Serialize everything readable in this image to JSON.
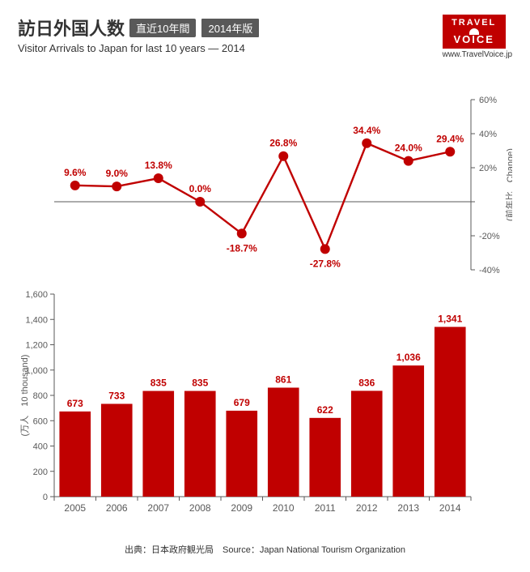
{
  "header": {
    "main_title": "訪日外国人数",
    "pill1": "直近10年間",
    "pill2": "2014年版",
    "subtitle": "Visitor Arrivals to Japan for last 10 years — 2014",
    "logo_top": "TRAVEL",
    "logo_bottom": "VOICE",
    "logo_url": "www.TravelVoice.jp"
  },
  "line_chart": {
    "type": "line",
    "ylabel": "(前年比　Change)",
    "label_fontsize": 11,
    "ylim": [
      -40,
      60
    ],
    "ytick_step": 20,
    "yticks": [
      -40,
      -20,
      0,
      20,
      40,
      60
    ],
    "ytick_labels": [
      "-40%",
      "-20%",
      "",
      "20%",
      "40%",
      "60%"
    ],
    "categories": [
      "2005",
      "2006",
      "2007",
      "2008",
      "2009",
      "2010",
      "2011",
      "2012",
      "2013",
      "2014"
    ],
    "values": [
      9.6,
      9.0,
      13.8,
      0.0,
      -18.7,
      26.8,
      -27.8,
      34.4,
      24.0,
      29.4
    ],
    "value_labels": [
      "9.6%",
      "9.0%",
      "13.8%",
      "0.0%",
      "-18.7%",
      "26.8%",
      "-27.8%",
      "34.4%",
      "24.0%",
      "29.4%"
    ],
    "label_positions": [
      "above",
      "above",
      "above",
      "above",
      "below",
      "above",
      "below",
      "above",
      "above",
      "above"
    ],
    "line_color": "#c00000",
    "marker_color": "#c00000",
    "marker_size": 6,
    "line_width": 2.4,
    "axis_color": "#595959",
    "tick_color": "#595959",
    "text_color": "#c00000",
    "value_fontsize": 12
  },
  "bar_chart": {
    "type": "bar",
    "ylabel": "(万人　10 thousand)",
    "label_fontsize": 11,
    "ylim": [
      0,
      1600
    ],
    "ytick_step": 200,
    "yticks": [
      0,
      200,
      400,
      600,
      800,
      1000,
      1200,
      1400,
      1600
    ],
    "ytick_labels": [
      "0",
      "200",
      "400",
      "600",
      "800",
      "1,000",
      "1,200",
      "1,400",
      "1,600"
    ],
    "categories": [
      "2005",
      "2006",
      "2007",
      "2008",
      "2009",
      "2010",
      "2011",
      "2012",
      "2013",
      "2014"
    ],
    "values": [
      673,
      733,
      835,
      835,
      679,
      861,
      622,
      836,
      1036,
      1341
    ],
    "value_labels": [
      "673",
      "733",
      "835",
      "835",
      "679",
      "861",
      "622",
      "836",
      "1,036",
      "1,341"
    ],
    "bar_color": "#c00000",
    "bar_width": 0.75,
    "axis_color": "#595959",
    "tick_color": "#595959",
    "text_color": "#c00000",
    "value_fontsize": 12,
    "xlabel_fontsize": 12
  },
  "source": "出典：日本政府観光局　Source：Japan National Tourism Organization"
}
